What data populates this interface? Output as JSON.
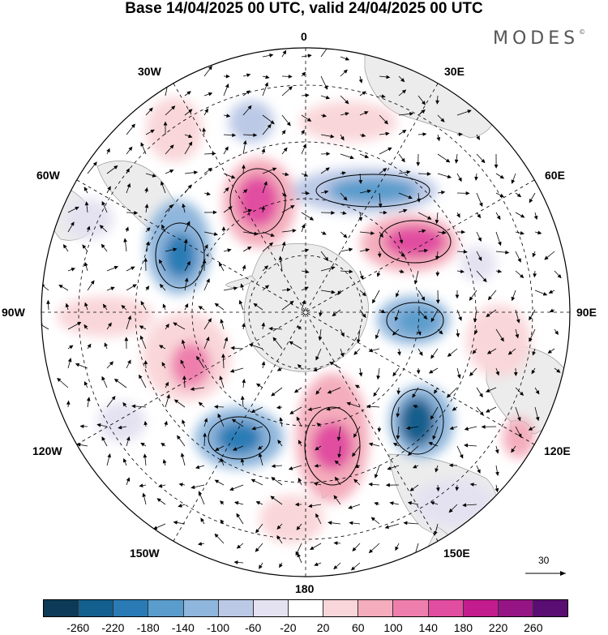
{
  "title": "Base 14/04/2025 00 UTC, valid 24/04/2025 00 UTC",
  "brand": "MODES",
  "brand_mark": "©",
  "longitude_labels": {
    "lon_0": "0",
    "lon_30e": "30E",
    "lon_60e": "60E",
    "lon_90e": "90E",
    "lon_120e": "120E",
    "lon_150e": "150E",
    "lon_180": "180",
    "lon_150w": "150W",
    "lon_120w": "120W",
    "lon_90w": "90W",
    "lon_60w": "60W",
    "lon_30w": "30W"
  },
  "reference_vector_label": "30",
  "colorbar": {
    "colors": [
      "#0c3a57",
      "#135f8d",
      "#2a7bb5",
      "#5a9ccc",
      "#8fb6dc",
      "#bcc9e6",
      "#e4e2f1",
      "#ffffff",
      "#f9d6d9",
      "#f4adbc",
      "#ee7fad",
      "#e14da0",
      "#c31c8e",
      "#961584",
      "#5a0d72"
    ],
    "tick_labels": [
      "-260",
      "-220",
      "-180",
      "-140",
      "-100",
      "-60",
      "-20",
      "20",
      "60",
      "100",
      "140",
      "180",
      "220",
      "260"
    ]
  },
  "colors": {
    "land": "#ececec",
    "positive": "#e14da0",
    "negative": "#2a7bb5"
  }
}
